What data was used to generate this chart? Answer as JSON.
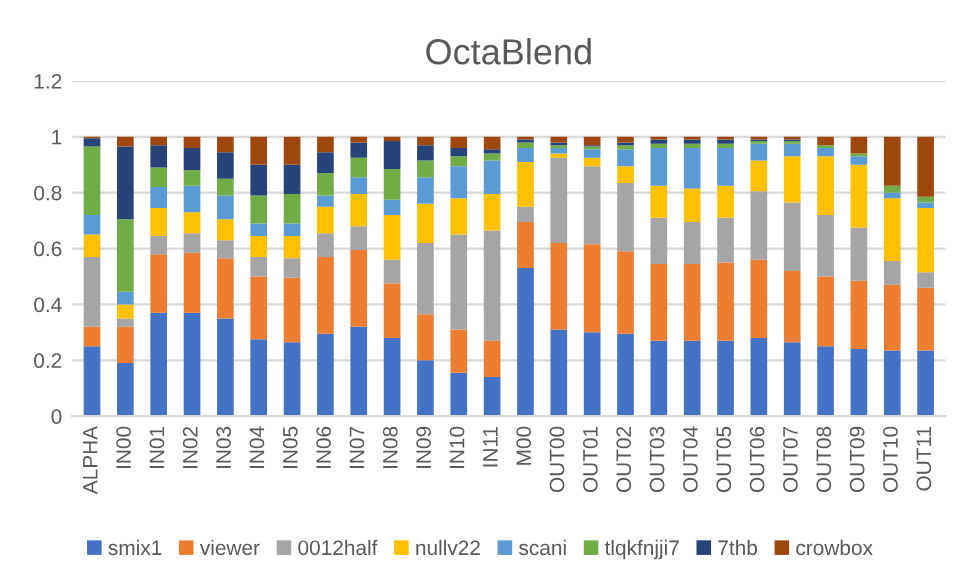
{
  "chart_data": {
    "type": "bar",
    "stacked": true,
    "title": "OctaBlend",
    "categories": [
      "ALPHA",
      "IN00",
      "IN01",
      "IN02",
      "IN03",
      "IN04",
      "IN05",
      "IN06",
      "IN07",
      "IN08",
      "IN09",
      "IN10",
      "IN11",
      "M00",
      "OUT00",
      "OUT01",
      "OUT02",
      "OUT03",
      "OUT04",
      "OUT05",
      "OUT06",
      "OUT07",
      "OUT08",
      "OUT09",
      "OUT10",
      "OUT11"
    ],
    "series": [
      {
        "name": "smix1",
        "color": "#4472c4",
        "values": [
          0.25,
          0.19,
          0.37,
          0.37,
          0.35,
          0.275,
          0.265,
          0.295,
          0.32,
          0.28,
          0.2,
          0.155,
          0.14,
          0.53,
          0.31,
          0.3,
          0.295,
          0.27,
          0.27,
          0.27,
          0.28,
          0.265,
          0.25,
          0.24,
          0.235,
          0.235
        ]
      },
      {
        "name": "viewer",
        "color": "#ed7d31",
        "values": [
          0.07,
          0.13,
          0.21,
          0.215,
          0.215,
          0.225,
          0.23,
          0.275,
          0.275,
          0.195,
          0.165,
          0.155,
          0.13,
          0.165,
          0.31,
          0.315,
          0.295,
          0.275,
          0.275,
          0.28,
          0.28,
          0.255,
          0.25,
          0.245,
          0.235,
          0.225
        ]
      },
      {
        "name": "0012half",
        "color": "#a5a5a5",
        "values": [
          0.25,
          0.03,
          0.065,
          0.07,
          0.065,
          0.07,
          0.07,
          0.085,
          0.085,
          0.085,
          0.255,
          0.34,
          0.395,
          0.055,
          0.305,
          0.28,
          0.245,
          0.165,
          0.15,
          0.16,
          0.245,
          0.245,
          0.22,
          0.19,
          0.085,
          0.055
        ]
      },
      {
        "name": "nullv22",
        "color": "#ffc000",
        "values": [
          0.08,
          0.05,
          0.1,
          0.075,
          0.075,
          0.075,
          0.08,
          0.095,
          0.115,
          0.16,
          0.14,
          0.13,
          0.13,
          0.16,
          0.015,
          0.03,
          0.06,
          0.115,
          0.12,
          0.115,
          0.11,
          0.165,
          0.21,
          0.225,
          0.225,
          0.23
        ]
      },
      {
        "name": "scani",
        "color": "#5b9bd5",
        "values": [
          0.07,
          0.045,
          0.075,
          0.095,
          0.085,
          0.045,
          0.045,
          0.04,
          0.06,
          0.055,
          0.095,
          0.115,
          0.12,
          0.05,
          0.02,
          0.03,
          0.06,
          0.135,
          0.145,
          0.135,
          0.06,
          0.045,
          0.03,
          0.03,
          0.02,
          0.02
        ]
      },
      {
        "name": "tlqkfnjji7",
        "color": "#70ad47",
        "values": [
          0.245,
          0.26,
          0.07,
          0.055,
          0.06,
          0.1,
          0.105,
          0.08,
          0.07,
          0.11,
          0.06,
          0.035,
          0.025,
          0.02,
          0.01,
          0.01,
          0.015,
          0.015,
          0.015,
          0.015,
          0.01,
          0.01,
          0.01,
          0.01,
          0.025,
          0.02
        ]
      },
      {
        "name": "7thb",
        "color": "#264478",
        "values": [
          0.03,
          0.26,
          0.08,
          0.08,
          0.095,
          0.11,
          0.105,
          0.075,
          0.055,
          0.1,
          0.055,
          0.03,
          0.015,
          0.01,
          0.01,
          0.005,
          0.01,
          0.015,
          0.015,
          0.015,
          0.005,
          0.005,
          0,
          0,
          0,
          0
        ]
      },
      {
        "name": "crowbox",
        "color": "#9e480e",
        "values": [
          0.005,
          0.035,
          0.03,
          0.04,
          0.055,
          0.1,
          0.1,
          0.055,
          0.02,
          0.015,
          0.03,
          0.04,
          0.045,
          0.01,
          0.02,
          0.03,
          0.02,
          0.01,
          0.01,
          0.01,
          0.01,
          0.01,
          0.03,
          0.06,
          0.175,
          0.215
        ]
      }
    ],
    "ylim": [
      0,
      1.2
    ],
    "yticks": [
      0,
      0.2,
      0.4,
      0.6,
      0.8,
      1,
      1.2
    ],
    "grid": "y",
    "legend": "bottom"
  }
}
